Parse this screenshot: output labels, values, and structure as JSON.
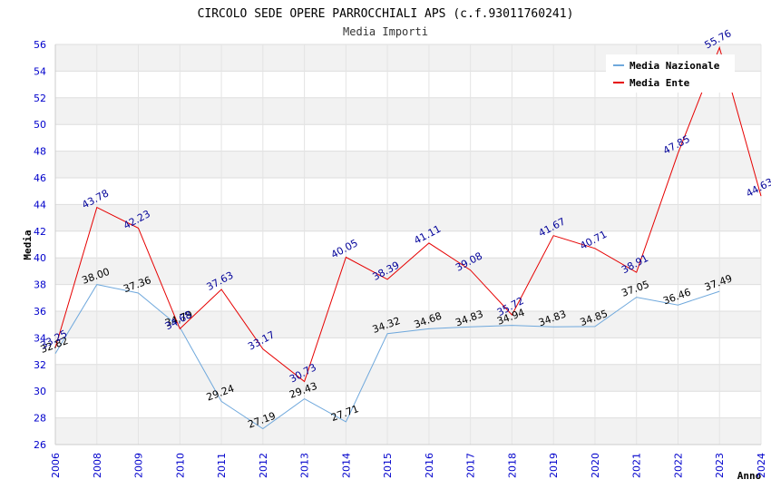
{
  "chart_data": {
    "type": "line",
    "title": "CIRCOLO SEDE OPERE PARROCCHIALI APS (c.f.93011760241)",
    "subtitle": "Media Importi",
    "ylabel": "Media",
    "xlabel": "Anno",
    "ylim": [
      26,
      56
    ],
    "yticks": [
      "26",
      "28",
      "30",
      "32",
      "34",
      "36",
      "38",
      "40",
      "42",
      "44",
      "46",
      "48",
      "50",
      "52",
      "54",
      "56"
    ],
    "categories": [
      "2006",
      "2008",
      "2009",
      "2010",
      "2011",
      "2012",
      "2013",
      "2014",
      "2015",
      "2016",
      "2017",
      "2018",
      "2019",
      "2020",
      "2021",
      "2022",
      "2023",
      "2024"
    ],
    "series": [
      {
        "name": "Media Nazionale",
        "color": "#6fa8dc",
        "values": [
          32.82,
          38.0,
          37.36,
          34.79,
          29.24,
          27.19,
          29.43,
          27.71,
          34.32,
          34.68,
          34.83,
          34.94,
          34.83,
          34.85,
          37.05,
          36.46,
          37.49,
          null
        ],
        "labels": [
          "32.82",
          "38.00",
          "37.36",
          "34.79",
          "29.24",
          "27.19",
          "29.43",
          "27.71",
          "34.32",
          "34.68",
          "34.83",
          "34.94",
          "34.83",
          "34.85",
          "37.05",
          "36.46",
          "37.49",
          ""
        ]
      },
      {
        "name": "Media Ente",
        "color": "#e60000",
        "values": [
          33.25,
          43.78,
          42.23,
          34.68,
          37.63,
          33.17,
          30.73,
          40.05,
          38.39,
          41.11,
          39.08,
          35.72,
          41.67,
          40.71,
          38.91,
          47.85,
          55.76,
          44.63
        ],
        "labels": [
          "33.25",
          "43.78",
          "42.23",
          "34.68",
          "37.63",
          "33.17",
          "30.73",
          "40.05",
          "38.39",
          "41.11",
          "39.08",
          "35.72",
          "41.67",
          "40.71",
          "38.91",
          "47.85",
          "55.76",
          "44.63"
        ]
      }
    ],
    "grid": true,
    "legend_position": "top-right"
  }
}
